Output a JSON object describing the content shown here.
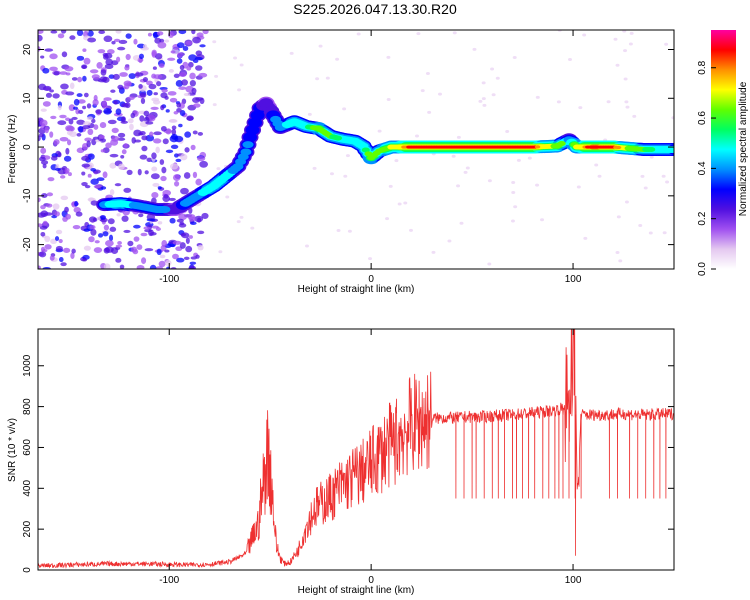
{
  "title": "S225.2026.047.13.30.R20",
  "chart_data": [
    {
      "type": "heatmap",
      "xlabel": "Height of straight line (km)",
      "ylabel": "Frequency (Hz)",
      "xlim": [
        -165,
        150
      ],
      "ylim": [
        -25,
        24
      ],
      "xticks": [
        -100,
        0,
        100
      ],
      "yticks": [
        -20,
        -10,
        0,
        10,
        20
      ],
      "xtick_labels": [
        "-100",
        "0",
        "100"
      ],
      "ytick_labels": [
        "-20",
        "-10",
        "0",
        "10",
        "20"
      ],
      "colorbar": {
        "label": "Normalized spectral amplitude",
        "range": [
          0.0,
          0.95
        ],
        "ticks": [
          0.0,
          0.2,
          0.4,
          0.6,
          0.8
        ],
        "tick_labels": [
          "0.0",
          "0.2",
          "0.4",
          "0.6",
          "0.8"
        ],
        "colors": [
          "#ffffff",
          "#e4c8f0",
          "#a050f0",
          "#5010e0",
          "#0000ff",
          "#0090ff",
          "#00ffff",
          "#00ff60",
          "#60ff00",
          "#ffff00",
          "#ff9000",
          "#ff0000",
          "#ff00a0"
        ]
      },
      "ridge": {
        "points": [
          {
            "x": -132,
            "y": -11.8,
            "a": 0.45
          },
          {
            "x": -124,
            "y": -11.6,
            "a": 0.55
          },
          {
            "x": -116,
            "y": -12.0,
            "a": 0.45
          },
          {
            "x": -106,
            "y": -12.8,
            "a": 0.4
          },
          {
            "x": -97,
            "y": -12.8,
            "a": 0.3
          },
          {
            "x": -82,
            "y": -9.0,
            "a": 0.5
          },
          {
            "x": -78,
            "y": -8.0,
            "a": 0.55
          },
          {
            "x": -72,
            "y": -6.0,
            "a": 0.5
          },
          {
            "x": -66,
            "y": -4.0,
            "a": 0.45
          },
          {
            "x": -62,
            "y": -1.0,
            "a": 0.4
          },
          {
            "x": -60,
            "y": 2.0,
            "a": 0.35
          },
          {
            "x": -55,
            "y": 8.0,
            "a": 0.35
          },
          {
            "x": -52,
            "y": 9.0,
            "a": 0.3
          },
          {
            "x": -45,
            "y": 4.0,
            "a": 0.4
          },
          {
            "x": -38,
            "y": 5.2,
            "a": 0.55
          },
          {
            "x": -32,
            "y": 4.2,
            "a": 0.55
          },
          {
            "x": -26,
            "y": 3.8,
            "a": 0.65
          },
          {
            "x": -20,
            "y": 2.2,
            "a": 0.6
          },
          {
            "x": -14,
            "y": 1.6,
            "a": 0.55
          },
          {
            "x": -8,
            "y": 1.2,
            "a": 0.55
          },
          {
            "x": -4,
            "y": 0.2,
            "a": 0.55
          },
          {
            "x": 0,
            "y": -2.2,
            "a": 0.65
          },
          {
            "x": 4,
            "y": -0.8,
            "a": 0.6
          },
          {
            "x": 10,
            "y": 0.0,
            "a": 0.75
          },
          {
            "x": 20,
            "y": 0.0,
            "a": 0.85
          },
          {
            "x": 40,
            "y": 0.0,
            "a": 0.85
          },
          {
            "x": 60,
            "y": 0.0,
            "a": 0.85
          },
          {
            "x": 80,
            "y": 0.0,
            "a": 0.85
          },
          {
            "x": 92,
            "y": 0.2,
            "a": 0.7
          },
          {
            "x": 98,
            "y": 1.5,
            "a": 0.45
          },
          {
            "x": 102,
            "y": 0.0,
            "a": 0.75
          },
          {
            "x": 110,
            "y": 0.0,
            "a": 0.9
          },
          {
            "x": 120,
            "y": 0.0,
            "a": 0.85
          },
          {
            "x": 135,
            "y": -0.5,
            "a": 0.6
          },
          {
            "x": 150,
            "y": -0.5,
            "a": 0.5
          }
        ]
      },
      "noise_regions": [
        {
          "x_range": [
            -165,
            -82
          ],
          "y_range": [
            -25,
            24
          ],
          "level": 0.25
        }
      ]
    },
    {
      "type": "line",
      "xlabel": "Height of straight line (km)",
      "ylabel": "SNR (10 * v/v)",
      "xlim": [
        -165,
        150
      ],
      "ylim": [
        0,
        1180
      ],
      "xticks": [
        -100,
        0,
        100
      ],
      "yticks": [
        0,
        200,
        400,
        600,
        800,
        1000
      ],
      "xtick_labels": [
        "-100",
        "0",
        "100"
      ],
      "ytick_labels": [
        "0",
        "200",
        "400",
        "600",
        "800",
        "1000"
      ],
      "color": "#ee3030",
      "series": [
        {
          "name": "SNR",
          "x": [
            -165,
            -150,
            -130,
            -110,
            -90,
            -80,
            -70,
            -62,
            -56,
            -53,
            -51,
            -49,
            -47,
            -45,
            -43,
            -40,
            -36,
            -32,
            -28,
            -24,
            -20,
            -16,
            -12,
            -8,
            -4,
            0,
            4,
            8,
            12,
            16,
            20,
            25,
            30,
            36,
            42,
            48,
            55,
            60,
            65,
            70,
            75,
            80,
            85,
            90,
            94,
            98,
            100,
            101,
            102,
            104,
            108,
            115,
            125,
            135,
            150
          ],
          "y": [
            20,
            25,
            30,
            30,
            25,
            28,
            40,
            80,
            220,
            450,
            600,
            380,
            120,
            60,
            30,
            40,
            100,
            220,
            300,
            330,
            360,
            400,
            430,
            460,
            480,
            520,
            560,
            600,
            630,
            680,
            710,
            730,
            740,
            745,
            745,
            750,
            750,
            755,
            758,
            760,
            765,
            770,
            775,
            780,
            790,
            800,
            1100,
            1180,
            300,
            760,
            760,
            760,
            765,
            760,
            765
          ]
        }
      ],
      "dips": [
        42,
        46,
        50,
        52,
        56,
        60,
        63,
        66,
        70,
        72,
        75,
        78,
        81,
        85,
        88,
        91,
        93,
        95,
        98,
        101,
        104,
        118,
        122,
        128,
        132,
        136,
        140,
        143,
        146
      ],
      "dip_floor": 350
    }
  ]
}
